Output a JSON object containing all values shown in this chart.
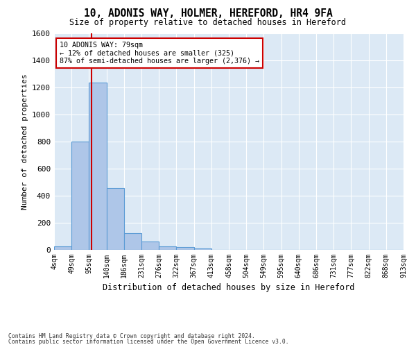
{
  "title": "10, ADONIS WAY, HOLMER, HEREFORD, HR4 9FA",
  "subtitle": "Size of property relative to detached houses in Hereford",
  "xlabel": "Distribution of detached houses by size in Hereford",
  "ylabel": "Number of detached properties",
  "bin_labels": [
    "4sqm",
    "49sqm",
    "95sqm",
    "140sqm",
    "186sqm",
    "231sqm",
    "276sqm",
    "322sqm",
    "367sqm",
    "413sqm",
    "458sqm",
    "504sqm",
    "549sqm",
    "595sqm",
    "640sqm",
    "686sqm",
    "731sqm",
    "777sqm",
    "822sqm",
    "868sqm",
    "913sqm"
  ],
  "bar_values": [
    25,
    800,
    1235,
    455,
    125,
    60,
    28,
    18,
    12,
    0,
    0,
    0,
    0,
    0,
    0,
    0,
    0,
    0,
    0,
    0
  ],
  "bar_color": "#aec6e8",
  "bar_edge_color": "#5b9bd5",
  "background_color": "#dce9f5",
  "grid_color": "#ffffff",
  "property_line_color": "#cc0000",
  "annotation_text": "10 ADONIS WAY: 79sqm\n← 12% of detached houses are smaller (325)\n87% of semi-detached houses are larger (2,376) →",
  "annotation_box_color": "#cc0000",
  "annotation_bg": "#ffffff",
  "ylim": [
    0,
    1600
  ],
  "yticks": [
    0,
    200,
    400,
    600,
    800,
    1000,
    1200,
    1400,
    1600
  ],
  "footer_line1": "Contains HM Land Registry data © Crown copyright and database right 2024.",
  "footer_line2": "Contains public sector information licensed under the Open Government Licence v3.0.",
  "property_sqm": 79,
  "bin_starts": [
    4,
    49,
    95,
    140,
    186,
    231,
    276,
    322,
    367,
    413,
    458,
    504,
    549,
    595,
    640,
    686,
    731,
    777,
    822,
    868,
    913
  ]
}
